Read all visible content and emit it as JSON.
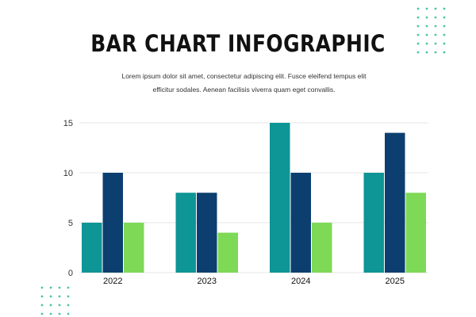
{
  "header": {
    "title": "BAR CHART INFOGRAPHIC",
    "subtitle": "Lorem ipsum dolor sit amet, consectetur adipiscing elit. Fusce eleifend tempus elit efficitur sodales. Aenean facilisis viverra quam eget convallis."
  },
  "colors": {
    "series": [
      "#0e9596",
      "#0c3f6f",
      "#7ed957"
    ],
    "dots": "#4cc3a6",
    "grid": "#e6e6e6",
    "axis_text": "#333333"
  },
  "chart_data": {
    "type": "bar",
    "title": "BAR CHART INFOGRAPHIC",
    "xlabel": "",
    "ylabel": "",
    "categories": [
      "2022",
      "2023",
      "2024",
      "2025"
    ],
    "series": [
      {
        "values": [
          5,
          8,
          15,
          10
        ]
      },
      {
        "values": [
          10,
          8,
          10,
          14
        ]
      },
      {
        "values": [
          5,
          4,
          5,
          8
        ]
      }
    ],
    "ylim": [
      0,
      15
    ],
    "yticks": [
      "0",
      "5",
      "10",
      "15"
    ],
    "grid": true,
    "legend": "none"
  }
}
